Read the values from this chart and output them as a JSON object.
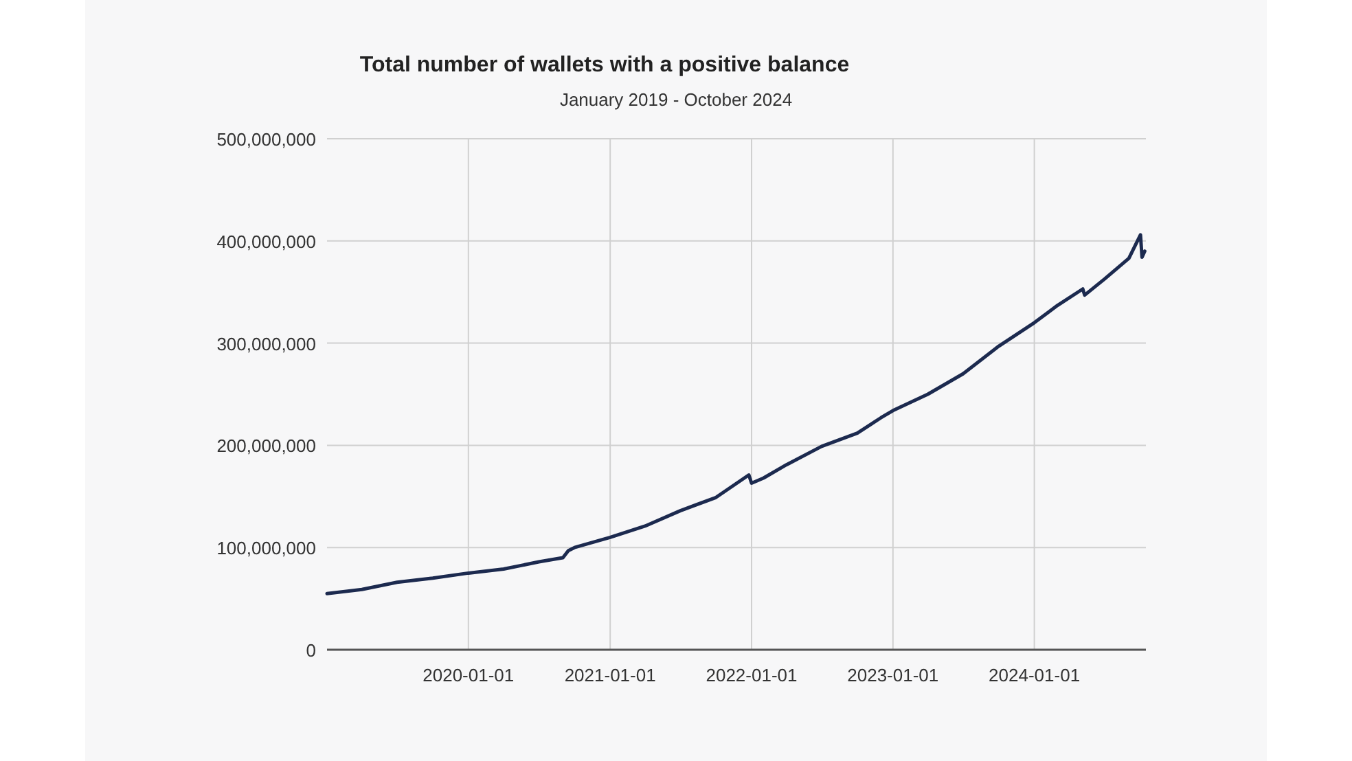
{
  "chart_data": {
    "type": "line",
    "title": "Total number of wallets with a positive balance",
    "subtitle": "January 2019 - October 2024",
    "x": [
      "2019-01-01",
      "2019-04-01",
      "2019-07-01",
      "2019-10-01",
      "2020-01-01",
      "2020-04-01",
      "2020-07-01",
      "2020-09-01",
      "2020-09-15",
      "2020-10-01",
      "2021-01-01",
      "2021-04-01",
      "2021-07-01",
      "2021-10-01",
      "2021-12-25",
      "2022-01-01",
      "2022-02-01",
      "2022-04-01",
      "2022-07-01",
      "2022-10-01",
      "2022-12-01",
      "2023-01-01",
      "2023-04-01",
      "2023-07-01",
      "2023-10-01",
      "2024-01-01",
      "2024-03-01",
      "2024-05-05",
      "2024-05-10",
      "2024-07-01",
      "2024-09-01",
      "2024-10-01",
      "2024-10-05",
      "2024-10-12"
    ],
    "series": [
      {
        "color": "#1c2a4f",
        "values": [
          55000000,
          59000000,
          66000000,
          70000000,
          75000000,
          79000000,
          86000000,
          90000000,
          97000000,
          100000000,
          110000000,
          121000000,
          136000000,
          149000000,
          171000000,
          163000000,
          168000000,
          181000000,
          199000000,
          212000000,
          227000000,
          234000000,
          250000000,
          270000000,
          297000000,
          320000000,
          337000000,
          353000000,
          347000000,
          363000000,
          383000000,
          406000000,
          384000000,
          390000000
        ]
      }
    ],
    "xlim": [
      "2019-01-01",
      "2024-10-15"
    ],
    "xticks": [
      {
        "value": "2020-01-01",
        "label": "2020-01-01"
      },
      {
        "value": "2021-01-01",
        "label": "2021-01-01"
      },
      {
        "value": "2022-01-01",
        "label": "2022-01-01"
      },
      {
        "value": "2023-01-01",
        "label": "2023-01-01"
      },
      {
        "value": "2024-01-01",
        "label": "2024-01-01"
      }
    ],
    "ylim": [
      0,
      500000000
    ],
    "yticks": [
      {
        "value": 0,
        "label": "0"
      },
      {
        "value": 100000000,
        "label": "100,000,000"
      },
      {
        "value": 200000000,
        "label": "200,000,000"
      },
      {
        "value": 300000000,
        "label": "300,000,000"
      },
      {
        "value": 400000000,
        "label": "400,000,000"
      },
      {
        "value": 500000000,
        "label": "500,000,000"
      }
    ],
    "grid": true,
    "marker": "none",
    "line_style": "solid"
  }
}
